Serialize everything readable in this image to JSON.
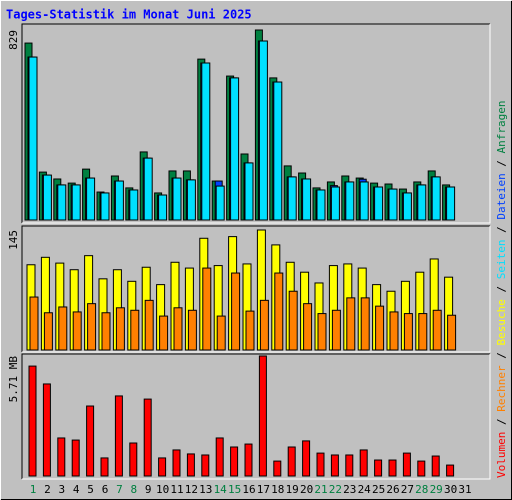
{
  "chart_data": [
    {
      "type": "bar",
      "title": "Tages-Statistik im Monat Juni 2025",
      "ylim": [
        0,
        829
      ],
      "yticks": [
        829
      ],
      "series": [
        {
          "name": "Anfragen",
          "color": "#008040",
          "values": [
            772,
            209,
            179,
            161,
            222,
            122,
            192,
            140,
            297,
            118,
            214,
            214,
            702,
            170,
            628,
            288,
            829,
            620,
            236,
            205,
            140,
            166,
            192,
            183,
            161,
            157,
            135,
            166,
            214,
            153,
            null
          ]
        },
        {
          "name": "Dateien",
          "color": "#0040ff",
          "values": [
            711,
            196,
            153,
            153,
            183,
            118,
            170,
            131,
            270,
            109,
            183,
            175,
            685,
            170,
            620,
            249,
            781,
            602,
            188,
            179,
            131,
            150,
            166,
            178,
            144,
            135,
            118,
            153,
            188,
            144,
            null
          ]
        },
        {
          "name": "Seiten",
          "color": "#00e0ff",
          "values": [
            711,
            196,
            153,
            153,
            183,
            118,
            170,
            131,
            270,
            109,
            183,
            175,
            685,
            148,
            620,
            249,
            781,
            602,
            188,
            179,
            131,
            144,
            166,
            166,
            144,
            135,
            118,
            153,
            188,
            144,
            null
          ]
        }
      ]
    },
    {
      "type": "bar",
      "ylim": [
        0,
        145
      ],
      "yticks": [
        145
      ],
      "series": [
        {
          "name": "Besuche",
          "color": "#ffff00",
          "values": [
            103,
            112,
            105,
            97,
            114,
            86,
            97,
            83,
            100,
            79,
            106,
            99,
            135,
            102,
            137,
            104,
            145,
            127,
            106,
            94,
            81,
            102,
            104,
            99,
            79,
            71,
            83,
            94,
            110,
            88,
            null
          ]
        },
        {
          "name": "Rechner",
          "color": "#ff8000",
          "values": [
            64,
            45,
            52,
            46,
            56,
            45,
            51,
            48,
            60,
            41,
            51,
            48,
            99,
            41,
            93,
            47,
            60,
            93,
            71,
            56,
            44,
            48,
            63,
            63,
            53,
            46,
            44,
            44,
            48,
            42,
            null
          ]
        }
      ]
    },
    {
      "type": "bar",
      "ylim": [
        0,
        5.71
      ],
      "yticks": [
        {
          "value": 5.71,
          "label": "5.71 MB"
        }
      ],
      "categories": [
        "1",
        "2",
        "3",
        "4",
        "5",
        "6",
        "7",
        "8",
        "9",
        "10",
        "11",
        "12",
        "13",
        "14",
        "15",
        "16",
        "17",
        "18",
        "19",
        "20",
        "21",
        "22",
        "23",
        "24",
        "25",
        "26",
        "27",
        "28",
        "29",
        "30",
        "31"
      ],
      "category_colors": [
        "#008040",
        "#000000",
        "#000000",
        "#000000",
        "#000000",
        "#000000",
        "#008040",
        "#008040",
        "#000000",
        "#000000",
        "#000000",
        "#000000",
        "#000000",
        "#008040",
        "#008040",
        "#000000",
        "#000000",
        "#000000",
        "#000000",
        "#000000",
        "#008040",
        "#008040",
        "#000000",
        "#000000",
        "#000000",
        "#000000",
        "#000000",
        "#008040",
        "#008040",
        "#000000",
        "#000000"
      ],
      "legend_separator": " / ",
      "series": [
        {
          "name": "Volumen",
          "color": "#ff0000",
          "values": [
            5.23,
            4.38,
            1.81,
            1.71,
            3.33,
            0.86,
            3.81,
            1.57,
            3.66,
            0.86,
            1.24,
            1.05,
            1.0,
            1.81,
            1.38,
            1.52,
            5.71,
            0.71,
            1.38,
            1.67,
            1.09,
            1.0,
            1.0,
            1.24,
            0.76,
            0.76,
            1.09,
            0.71,
            0.95,
            0.52,
            null
          ]
        }
      ]
    }
  ]
}
